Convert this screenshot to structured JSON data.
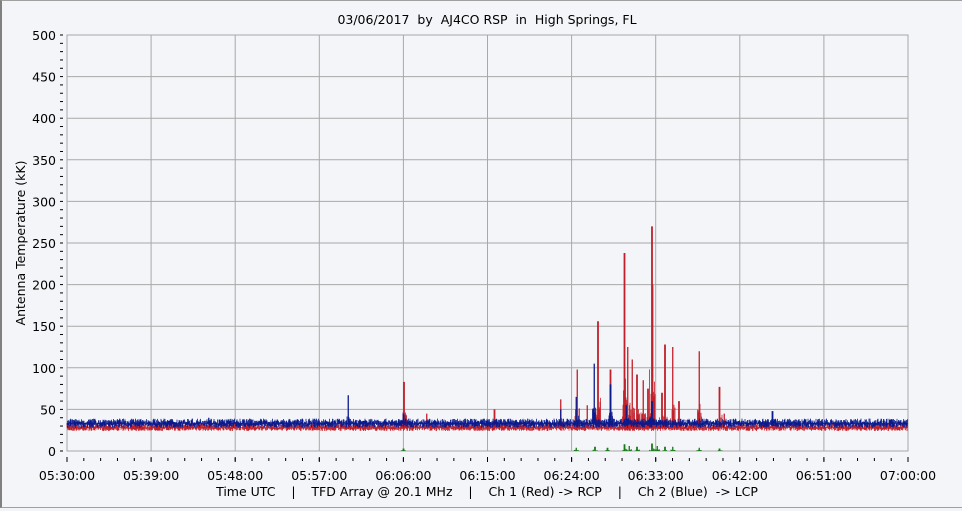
{
  "chart_data": {
    "type": "line",
    "title": "03/06/2017  by  AJ4CO RSP  in  High Springs, FL",
    "ylabel": "Antenna Temperature (kK)",
    "xlabel": "Time UTC    |    TFD Array @ 20.1 MHz    |    Ch 1 (Red) -> RCP    |    Ch 2 (Blue)  -> LCP",
    "ylim": [
      0,
      500
    ],
    "yticks": [
      0,
      50,
      100,
      150,
      200,
      250,
      300,
      350,
      400,
      450,
      500
    ],
    "xlim": [
      "05:30:00",
      "07:00:00"
    ],
    "xticks": [
      "05:30:00",
      "05:39:00",
      "05:48:00",
      "05:57:00",
      "06:06:00",
      "06:15:00",
      "06:24:00",
      "06:33:00",
      "06:42:00",
      "06:51:00",
      "07:00:00"
    ],
    "grid": true,
    "series": [
      {
        "name": "Ch 1 (Red)",
        "color": "#c0202a",
        "baseline": 28,
        "noise": 4,
        "spikes": [
          [
            "05:41:30",
            34
          ],
          [
            "06:06:04",
            83
          ],
          [
            "06:08:30",
            45
          ],
          [
            "06:15:45",
            50
          ],
          [
            "06:22:50",
            62
          ],
          [
            "06:24:36",
            98
          ],
          [
            "06:25:40",
            55
          ],
          [
            "06:26:50",
            156
          ],
          [
            "06:28:10",
            98
          ],
          [
            "06:29:40",
            238
          ],
          [
            "06:30:00",
            125
          ],
          [
            "06:30:30",
            110
          ],
          [
            "06:31:00",
            92
          ],
          [
            "06:31:40",
            85
          ],
          [
            "06:32:10",
            75
          ],
          [
            "06:32:36",
            270
          ],
          [
            "06:32:42",
            200
          ],
          [
            "06:33:40",
            70
          ],
          [
            "06:34:00",
            128
          ],
          [
            "06:34:50",
            125
          ],
          [
            "06:35:30",
            60
          ],
          [
            "06:37:40",
            120
          ],
          [
            "06:39:50",
            77
          ],
          [
            "06:40:20",
            45
          ]
        ]
      },
      {
        "name": "Ch 2 (Blue)",
        "color": "#0a1a8c",
        "baseline": 33,
        "noise": 5,
        "spikes": [
          [
            "05:45:10",
            40
          ],
          [
            "06:00:05",
            67
          ],
          [
            "06:06:00",
            45
          ],
          [
            "06:22:50",
            50
          ],
          [
            "06:24:30",
            65
          ],
          [
            "06:26:25",
            105
          ],
          [
            "06:28:10",
            80
          ],
          [
            "06:29:50",
            55
          ],
          [
            "06:32:36",
            60
          ],
          [
            "06:45:30",
            48
          ]
        ]
      },
      {
        "color": "#1a7a1a",
        "baseline": 0,
        "noise": 0,
        "spikes": [
          [
            "06:06:00",
            3
          ],
          [
            "06:24:30",
            4
          ],
          [
            "06:26:30",
            5
          ],
          [
            "06:27:50",
            4
          ],
          [
            "06:29:40",
            8
          ],
          [
            "06:30:10",
            6
          ],
          [
            "06:31:00",
            5
          ],
          [
            "06:32:36",
            9
          ],
          [
            "06:33:10",
            6
          ],
          [
            "06:34:00",
            5
          ],
          [
            "06:34:50",
            5
          ],
          [
            "06:37:40",
            4
          ],
          [
            "06:39:50",
            3
          ]
        ]
      }
    ]
  }
}
